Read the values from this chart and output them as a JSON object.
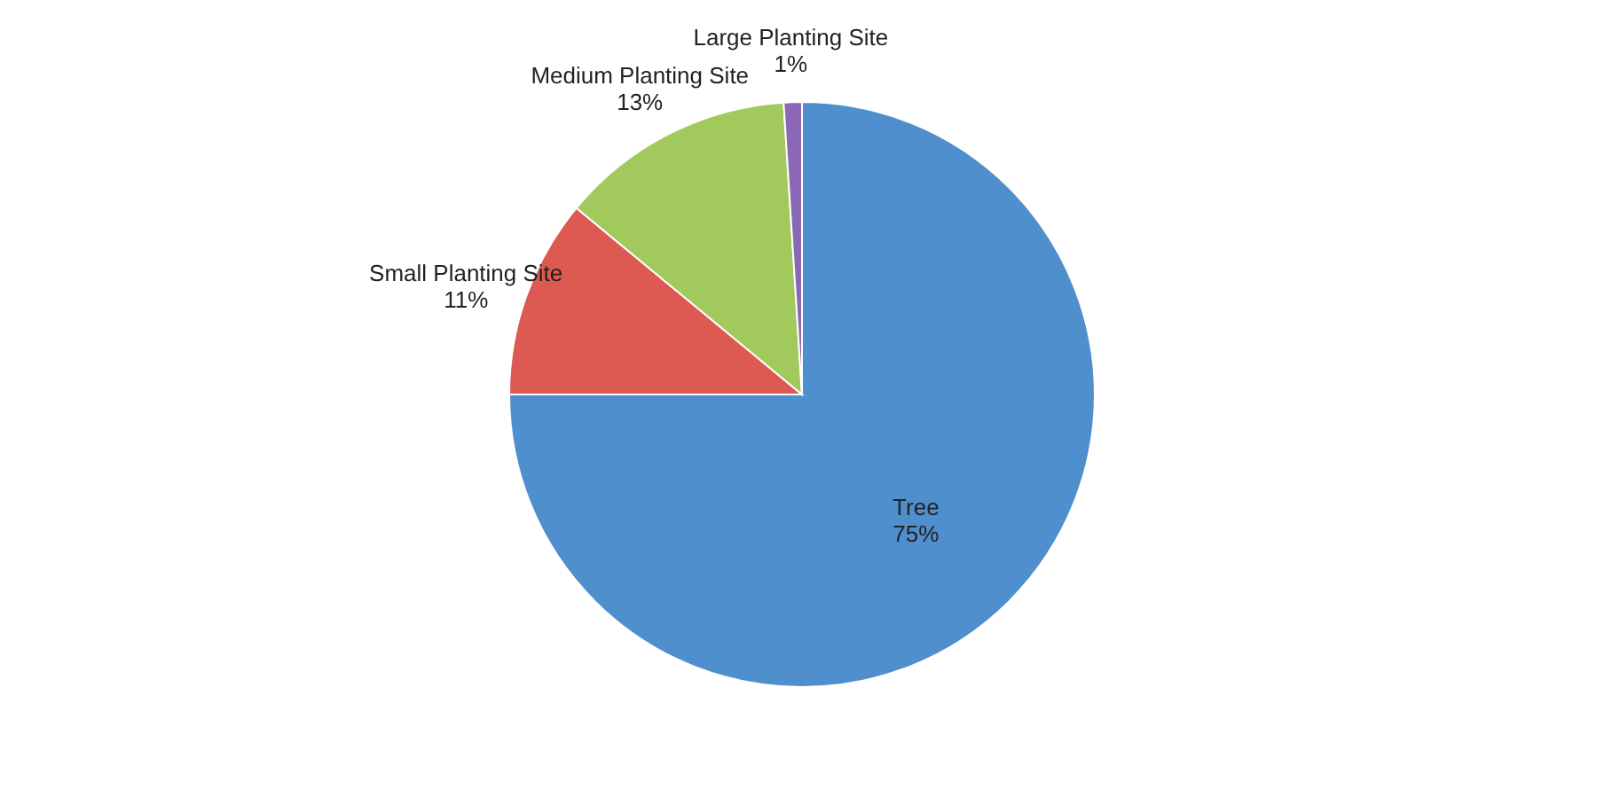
{
  "chart_data": {
    "type": "pie",
    "categories": [
      "Tree",
      "Small Planting Site",
      "Medium Planting Site",
      "Large Planting Site"
    ],
    "values": [
      75,
      11,
      13,
      1
    ],
    "colors": [
      "#4f8fcd",
      "#dd5a52",
      "#a2c95b",
      "#8a68b5"
    ],
    "value_labels": [
      "75%",
      "11%",
      "13%",
      "1%"
    ],
    "legend": false
  }
}
